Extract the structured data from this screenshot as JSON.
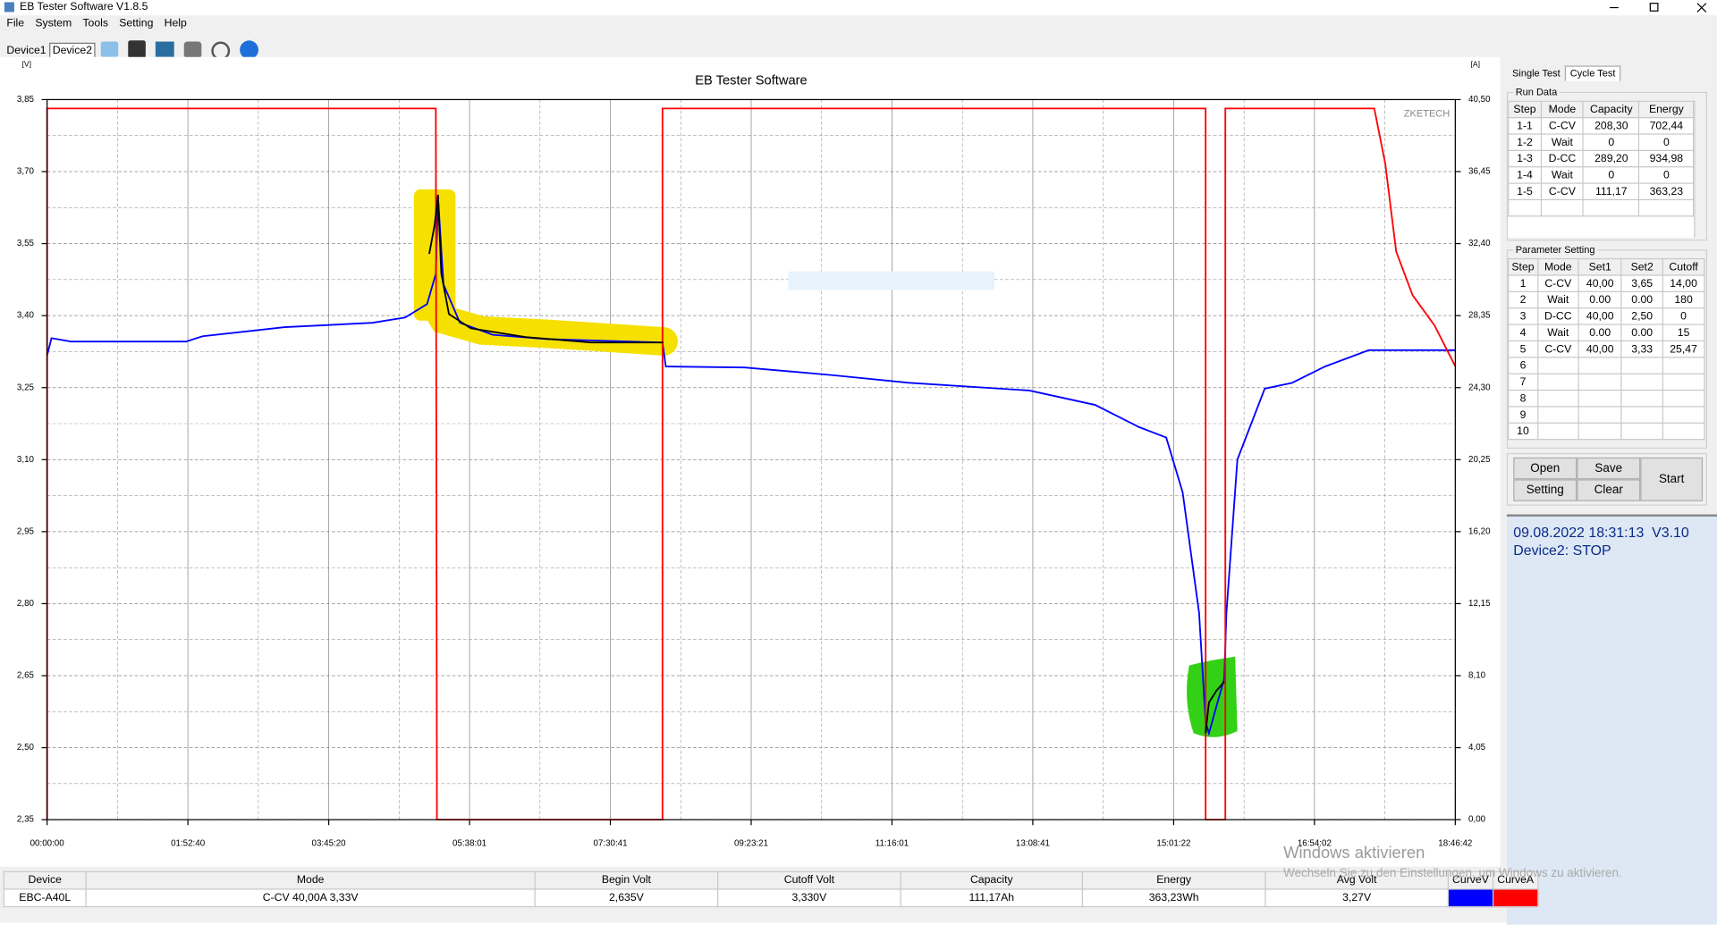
{
  "window": {
    "title": "EB Tester Software V1.8.5",
    "menu": [
      "File",
      "System",
      "Tools",
      "Setting",
      "Help"
    ],
    "devices": [
      "Device1",
      "Device2"
    ]
  },
  "chart_data": {
    "type": "line",
    "title": "EB Tester Software",
    "watermark": "ZKETECH",
    "y_unit": "[V]",
    "y2_unit": "[A]",
    "grid": true,
    "xlim": [
      0,
      67602
    ],
    "xticks": [
      {
        "value": 0,
        "label": "00:00:00"
      },
      {
        "value": 6760,
        "label": "01:52:40"
      },
      {
        "value": 13520,
        "label": "03:45:20"
      },
      {
        "value": 20281,
        "label": "05:38:01"
      },
      {
        "value": 27041,
        "label": "07:30:41"
      },
      {
        "value": 33801,
        "label": "09:23:21"
      },
      {
        "value": 40561,
        "label": "11:16:01"
      },
      {
        "value": 47321,
        "label": "13:08:41"
      },
      {
        "value": 54082,
        "label": "15:01:22"
      },
      {
        "value": 60842,
        "label": "16:54:02"
      },
      {
        "value": 67602,
        "label": "18:46:42"
      }
    ],
    "ylim": [
      2.35,
      3.85
    ],
    "yticks": [
      {
        "value": 2.35,
        "label": "2,35"
      },
      {
        "value": 2.5,
        "label": "2,50"
      },
      {
        "value": 2.65,
        "label": "2,65"
      },
      {
        "value": 2.8,
        "label": "2,80"
      },
      {
        "value": 2.95,
        "label": "2,95"
      },
      {
        "value": 3.1,
        "label": "3,10"
      },
      {
        "value": 3.25,
        "label": "3,25"
      },
      {
        "value": 3.4,
        "label": "3,40"
      },
      {
        "value": 3.55,
        "label": "3,55"
      },
      {
        "value": 3.7,
        "label": "3,70"
      },
      {
        "value": 3.85,
        "label": "3,85"
      }
    ],
    "y2lim": [
      0,
      40.5
    ],
    "y2ticks": [
      {
        "value": 0,
        "label": "0,00"
      },
      {
        "value": 4.05,
        "label": "4,05"
      },
      {
        "value": 8.1,
        "label": "8,10"
      },
      {
        "value": 12.15,
        "label": "12,15"
      },
      {
        "value": 16.2,
        "label": "16,20"
      },
      {
        "value": 20.25,
        "label": "20,25"
      },
      {
        "value": 24.3,
        "label": "24,30"
      },
      {
        "value": 28.35,
        "label": "28,35"
      },
      {
        "value": 32.4,
        "label": "32,40"
      },
      {
        "value": 36.45,
        "label": "36,45"
      },
      {
        "value": 40.5,
        "label": "40,50"
      }
    ],
    "series": [
      {
        "name": "CurveV",
        "color": "#0000ff",
        "axis": "y",
        "x": [
          0,
          210,
          1157,
          6676,
          7465,
          11407,
          15613,
          17190,
          18241,
          18662,
          18767,
          19030,
          19819,
          21396,
          24024,
          29544,
          29701,
          33486,
          37691,
          41371,
          47153,
          50308,
          52410,
          53725,
          54513,
          55302,
          55617,
          55775,
          56511,
          56616,
          57141,
          58456,
          59770,
          61347,
          63450,
          67602
        ],
        "values": [
          3.317,
          3.353,
          3.346,
          3.346,
          3.357,
          3.376,
          3.385,
          3.396,
          3.424,
          3.487,
          3.647,
          3.465,
          3.385,
          3.36,
          3.351,
          3.344,
          3.294,
          3.292,
          3.276,
          3.26,
          3.244,
          3.214,
          3.168,
          3.146,
          3.032,
          2.781,
          2.553,
          2.53,
          2.644,
          2.781,
          3.1,
          3.248,
          3.26,
          3.294,
          3.328,
          3.328
        ]
      },
      {
        "name": "CurveA",
        "color": "#ff0000",
        "axis": "y2",
        "x": [
          0,
          0,
          18662,
          18715,
          29544,
          29544,
          55617,
          55617,
          56563,
          56563,
          63713,
          64239,
          64765,
          65553,
          66605,
          67602
        ],
        "values": [
          0,
          40,
          40,
          0,
          0,
          40,
          40,
          0,
          0,
          40,
          40,
          36.9,
          31.95,
          29.5,
          27.8,
          25.5
        ]
      }
    ]
  },
  "run_data": {
    "tabs": [
      "Single Test",
      "Cycle Test"
    ],
    "title": "Run Data",
    "columns": [
      "Step",
      "Mode",
      "Capacity",
      "Energy"
    ],
    "rows": [
      [
        "1-1",
        "C-CV",
        "208,30",
        "702,44"
      ],
      [
        "1-2",
        "Wait",
        "0",
        "0"
      ],
      [
        "1-3",
        "D-CC",
        "289,20",
        "934,98"
      ],
      [
        "1-4",
        "Wait",
        "0",
        "0"
      ],
      [
        "1-5",
        "C-CV",
        "111,17",
        "363,23"
      ]
    ]
  },
  "parameter_setting": {
    "title": "Parameter Setting",
    "columns": [
      "Step",
      "Mode",
      "Set1",
      "Set2",
      "Cutoff"
    ],
    "rows": [
      [
        "1",
        "C-CV",
        "40,00",
        "3,65",
        "14,00"
      ],
      [
        "2",
        "Wait",
        "0.00",
        "0.00",
        "180"
      ],
      [
        "3",
        "D-CC",
        "40,00",
        "2,50",
        "0"
      ],
      [
        "4",
        "Wait",
        "0.00",
        "0.00",
        "15"
      ],
      [
        "5",
        "C-CV",
        "40,00",
        "3,33",
        "25,47"
      ],
      [
        "6"
      ],
      [
        "7"
      ],
      [
        "8"
      ],
      [
        "9"
      ],
      [
        "10"
      ]
    ]
  },
  "buttons": {
    "open": "Open",
    "save": "Save",
    "setting": "Setting",
    "clear": "Clear",
    "start": "Start"
  },
  "status": {
    "line1": "09.08.2022 18:31:13  V3.10",
    "line2": "Device2: STOP"
  },
  "summary": {
    "columns": [
      "Device",
      "Mode",
      "Begin Volt",
      "Cutoff Volt",
      "Capacity",
      "Energy",
      "Avg Volt"
    ],
    "row": [
      "EBC-A40L",
      "C-CV  40,00A  3,33V",
      "2,635V",
      "3,330V",
      "111,17Ah",
      "363,23Wh",
      "3,27V"
    ]
  },
  "os_overlay": {
    "title": "Windows aktivieren",
    "text": "Wechseln Sie zu den Einstellungen, um Windows zu aktivieren."
  }
}
